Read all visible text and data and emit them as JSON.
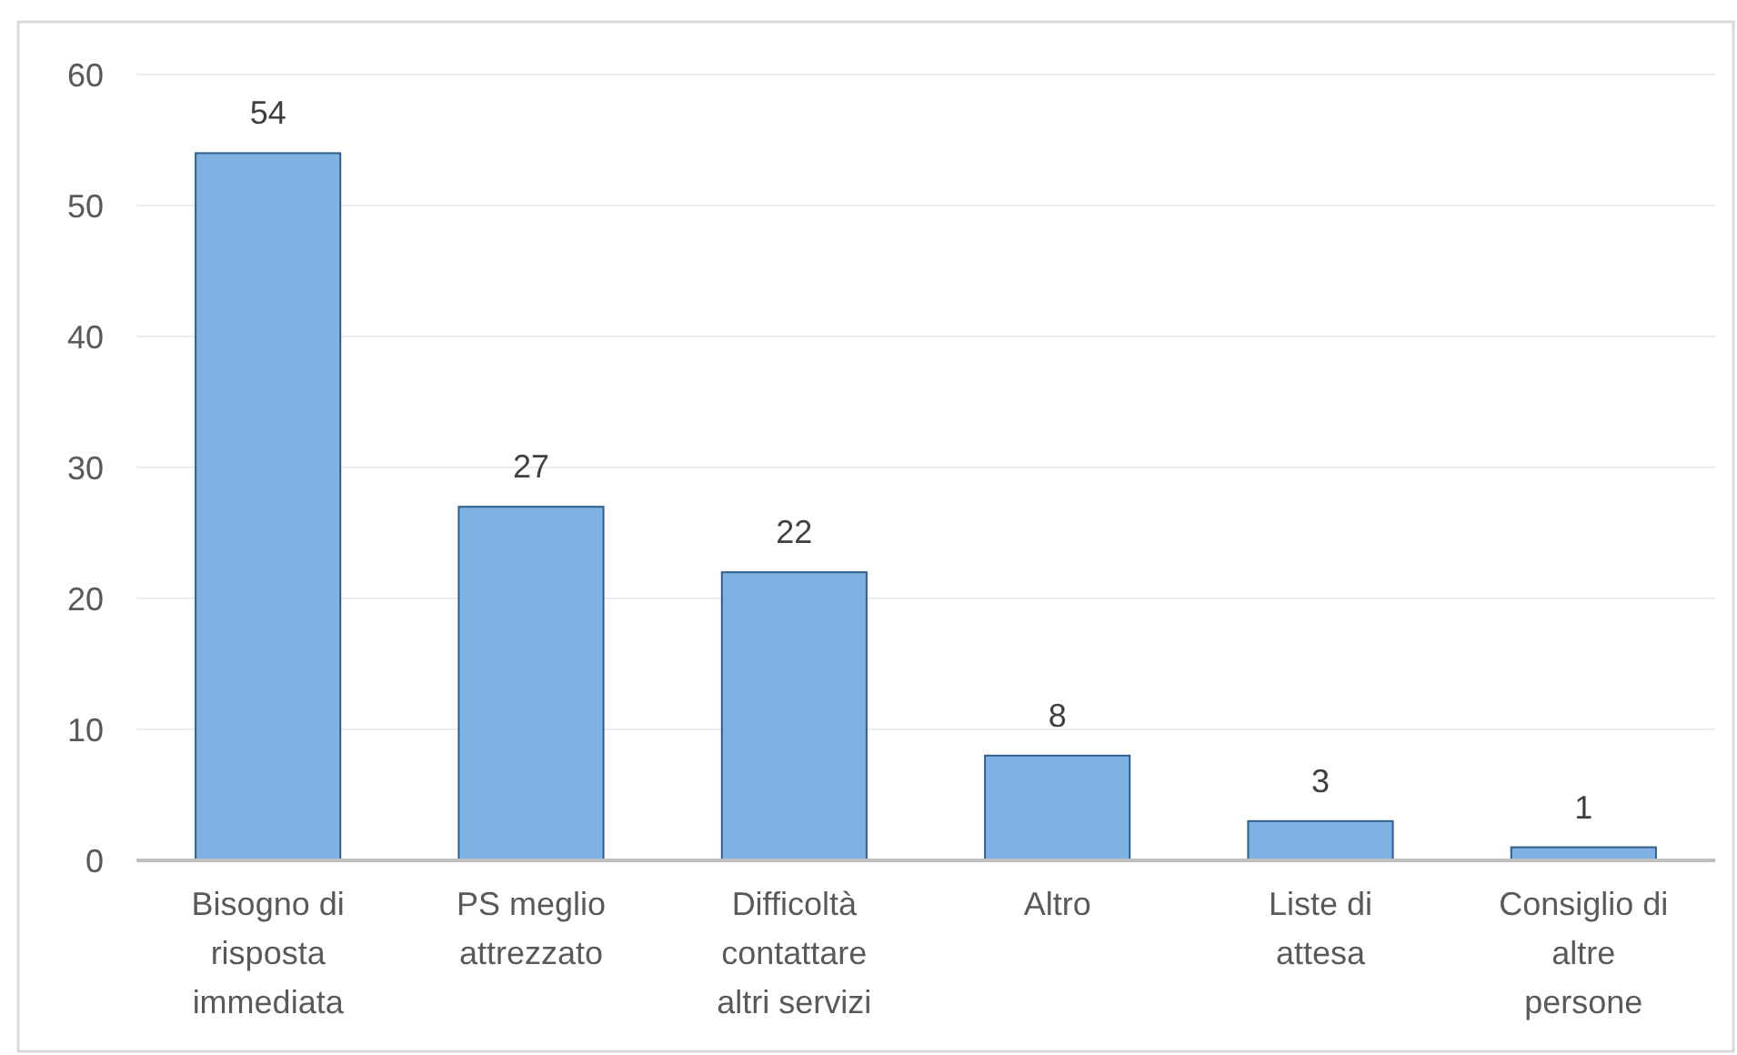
{
  "chart_data": {
    "type": "bar",
    "categories": [
      "Bisogno di risposta immediata",
      "PS meglio attrezzato",
      "Difficoltà contattare altri servizi",
      "Altro",
      "Liste di attesa",
      "Consiglio di altre persone"
    ],
    "values": [
      54,
      27,
      22,
      8,
      3,
      1
    ],
    "color": "#7fb2e2",
    "ylim": [
      0,
      60
    ],
    "yticks": [
      0,
      10,
      20,
      30,
      40,
      50,
      60
    ],
    "grid": "y",
    "data_labels": true
  }
}
